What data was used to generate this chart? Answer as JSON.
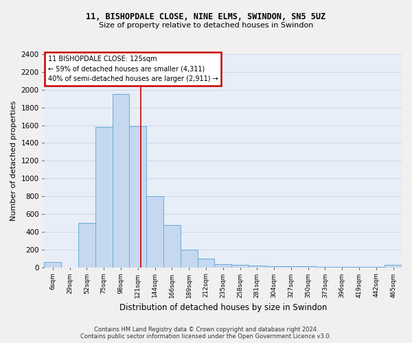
{
  "title1": "11, BISHOPDALE CLOSE, NINE ELMS, SWINDON, SN5 5UZ",
  "title2": "Size of property relative to detached houses in Swindon",
  "xlabel": "Distribution of detached houses by size in Swindon",
  "ylabel": "Number of detached properties",
  "footer1": "Contains HM Land Registry data © Crown copyright and database right 2024.",
  "footer2": "Contains public sector information licensed under the Open Government Licence v3.0.",
  "categories": [
    "6sqm",
    "29sqm",
    "52sqm",
    "75sqm",
    "98sqm",
    "121sqm",
    "144sqm",
    "166sqm",
    "189sqm",
    "212sqm",
    "235sqm",
    "258sqm",
    "281sqm",
    "304sqm",
    "327sqm",
    "350sqm",
    "373sqm",
    "396sqm",
    "419sqm",
    "442sqm",
    "465sqm"
  ],
  "values": [
    60,
    0,
    500,
    1580,
    1950,
    1590,
    800,
    480,
    200,
    95,
    38,
    30,
    22,
    10,
    10,
    10,
    5,
    5,
    5,
    5,
    25
  ],
  "bar_color": "#c5d8f0",
  "bar_edge_color": "#6aaad4",
  "bg_color": "#e8eef8",
  "grid_color": "#d0d8e8",
  "annotation_line_label": "11 BISHOPDALE CLOSE: 125sqm",
  "annotation_text2": "← 59% of detached houses are smaller (4,311)",
  "annotation_text3": "40% of semi-detached houses are larger (2,911) →",
  "annotation_box_color": "#ffffff",
  "annotation_box_edge": "#cc0000",
  "red_line_color": "#cc0000",
  "ylim": [
    0,
    2400
  ],
  "yticks": [
    0,
    200,
    400,
    600,
    800,
    1000,
    1200,
    1400,
    1600,
    1800,
    2000,
    2200,
    2400
  ],
  "red_line_x": 5.17,
  "fig_width": 6.0,
  "fig_height": 5.0,
  "fig_bg": "#f0f0f0"
}
